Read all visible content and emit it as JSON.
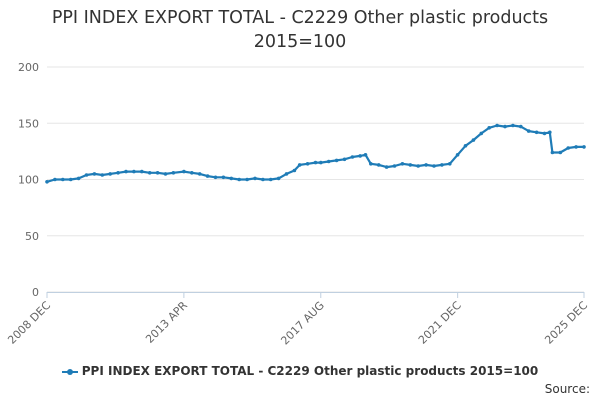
{
  "title_line1": "PPI INDEX EXPORT TOTAL - C2229 Other plastic products",
  "title_line2": "2015=100",
  "source": "Source:",
  "accent_color": "#1f7cb7",
  "chart_data": {
    "type": "line",
    "title": "PPI INDEX EXPORT TOTAL - C2229 Other plastic products 2015=100",
    "xlabel": "",
    "ylabel": "",
    "ylim": [
      0,
      200
    ],
    "yticks": [
      0,
      50,
      100,
      150,
      200
    ],
    "xtick_labels": [
      "2008 DEC",
      "2013 APR",
      "2017 AUG",
      "2021 DEC",
      "2025 DEC"
    ],
    "grid": true,
    "legend": "bottom",
    "series": [
      {
        "name": "PPI INDEX EXPORT TOTAL - C2229 Other plastic products 2015=100",
        "color": "#1f7cb7",
        "points": [
          [
            "2008-12",
            98
          ],
          [
            "2009-03",
            100
          ],
          [
            "2009-06",
            100
          ],
          [
            "2009-09",
            100
          ],
          [
            "2009-12",
            101
          ],
          [
            "2010-03",
            104
          ],
          [
            "2010-06",
            105
          ],
          [
            "2010-09",
            104
          ],
          [
            "2010-12",
            105
          ],
          [
            "2011-03",
            106
          ],
          [
            "2011-06",
            107
          ],
          [
            "2011-09",
            107
          ],
          [
            "2011-12",
            107
          ],
          [
            "2012-03",
            106
          ],
          [
            "2012-06",
            106
          ],
          [
            "2012-09",
            105
          ],
          [
            "2012-12",
            106
          ],
          [
            "2013-04",
            107
          ],
          [
            "2013-07",
            106
          ],
          [
            "2013-10",
            105
          ],
          [
            "2014-01",
            103
          ],
          [
            "2014-04",
            102
          ],
          [
            "2014-07",
            102
          ],
          [
            "2014-10",
            101
          ],
          [
            "2015-01",
            100
          ],
          [
            "2015-04",
            100
          ],
          [
            "2015-07",
            101
          ],
          [
            "2015-10",
            100
          ],
          [
            "2016-01",
            100
          ],
          [
            "2016-04",
            101
          ],
          [
            "2016-07",
            105
          ],
          [
            "2016-10",
            108
          ],
          [
            "2016-12",
            113
          ],
          [
            "2017-03",
            114
          ],
          [
            "2017-06",
            115
          ],
          [
            "2017-08",
            115
          ],
          [
            "2017-11",
            116
          ],
          [
            "2018-02",
            117
          ],
          [
            "2018-05",
            118
          ],
          [
            "2018-08",
            120
          ],
          [
            "2018-11",
            121
          ],
          [
            "2019-01",
            122
          ],
          [
            "2019-03",
            114
          ],
          [
            "2019-06",
            113
          ],
          [
            "2019-09",
            111
          ],
          [
            "2019-12",
            112
          ],
          [
            "2020-03",
            114
          ],
          [
            "2020-06",
            113
          ],
          [
            "2020-09",
            112
          ],
          [
            "2020-12",
            113
          ],
          [
            "2021-03",
            112
          ],
          [
            "2021-06",
            113
          ],
          [
            "2021-09",
            114
          ],
          [
            "2021-12",
            122
          ],
          [
            "2022-03",
            130
          ],
          [
            "2022-06",
            135
          ],
          [
            "2022-09",
            141
          ],
          [
            "2022-12",
            146
          ],
          [
            "2023-03",
            148
          ],
          [
            "2023-06",
            147
          ],
          [
            "2023-09",
            148
          ],
          [
            "2023-12",
            147
          ],
          [
            "2024-03",
            143
          ],
          [
            "2024-06",
            142
          ],
          [
            "2024-09",
            141
          ],
          [
            "2024-11",
            142
          ],
          [
            "2024-12",
            124
          ],
          [
            "2025-03",
            124
          ],
          [
            "2025-06",
            128
          ],
          [
            "2025-09",
            129
          ],
          [
            "2025-12",
            129
          ]
        ]
      }
    ]
  }
}
